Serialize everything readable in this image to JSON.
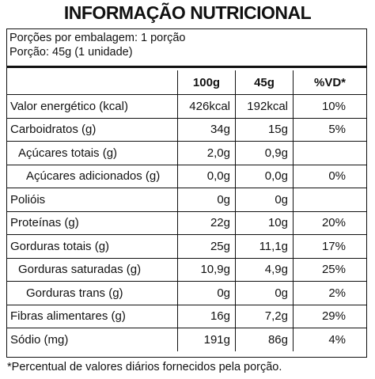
{
  "header": {
    "title": "INFORMAÇÃO NUTRICIONAL"
  },
  "serving": [
    "Porções por embalagem: 1 porção",
    "Porção: 45g (1 unidade)"
  ],
  "table": {
    "columns": [
      "100g",
      "45g",
      "%VD*"
    ],
    "rows": [
      {
        "label": "Valor energético (kcal)",
        "level": 0,
        "cells": [
          "426kcal",
          "192kcal",
          "10%"
        ]
      },
      {
        "label": "Carboidratos (g)",
        "level": 0,
        "cells": [
          "34g",
          "15g",
          "5%"
        ]
      },
      {
        "label": "Açúcares totais (g)",
        "level": 1,
        "cells": [
          "2,0g",
          "0,9g",
          null
        ]
      },
      {
        "label": "Açúcares adicionados (g)",
        "level": 2,
        "cells": [
          "0,0g",
          "0,0g",
          "0%"
        ]
      },
      {
        "label": "Polióis",
        "level": 0,
        "cells": [
          "0g",
          "0g",
          null
        ]
      },
      {
        "label": "Proteínas (g)",
        "level": 0,
        "cells": [
          "22g",
          "10g",
          "20%"
        ]
      },
      {
        "label": "Gorduras totais (g)",
        "level": 0,
        "cells": [
          "25g",
          "11,1g",
          "17%"
        ]
      },
      {
        "label": "Gorduras saturadas (g)",
        "level": 1,
        "cells": [
          "10,9g",
          "4,9g",
          "25%"
        ]
      },
      {
        "label": "Gorduras trans (g)",
        "level": 2,
        "cells": [
          "0g",
          "0g",
          "2%"
        ]
      },
      {
        "label": "Fibras alimentares (g)",
        "level": 0,
        "cells": [
          "16g",
          "7,2g",
          "29%"
        ]
      },
      {
        "label": "Sódio (mg)",
        "level": 0,
        "cells": [
          "191g",
          "86g",
          "4%"
        ]
      }
    ]
  },
  "footnote": "*Percentual de valores diários fornecidos pela porção."
}
